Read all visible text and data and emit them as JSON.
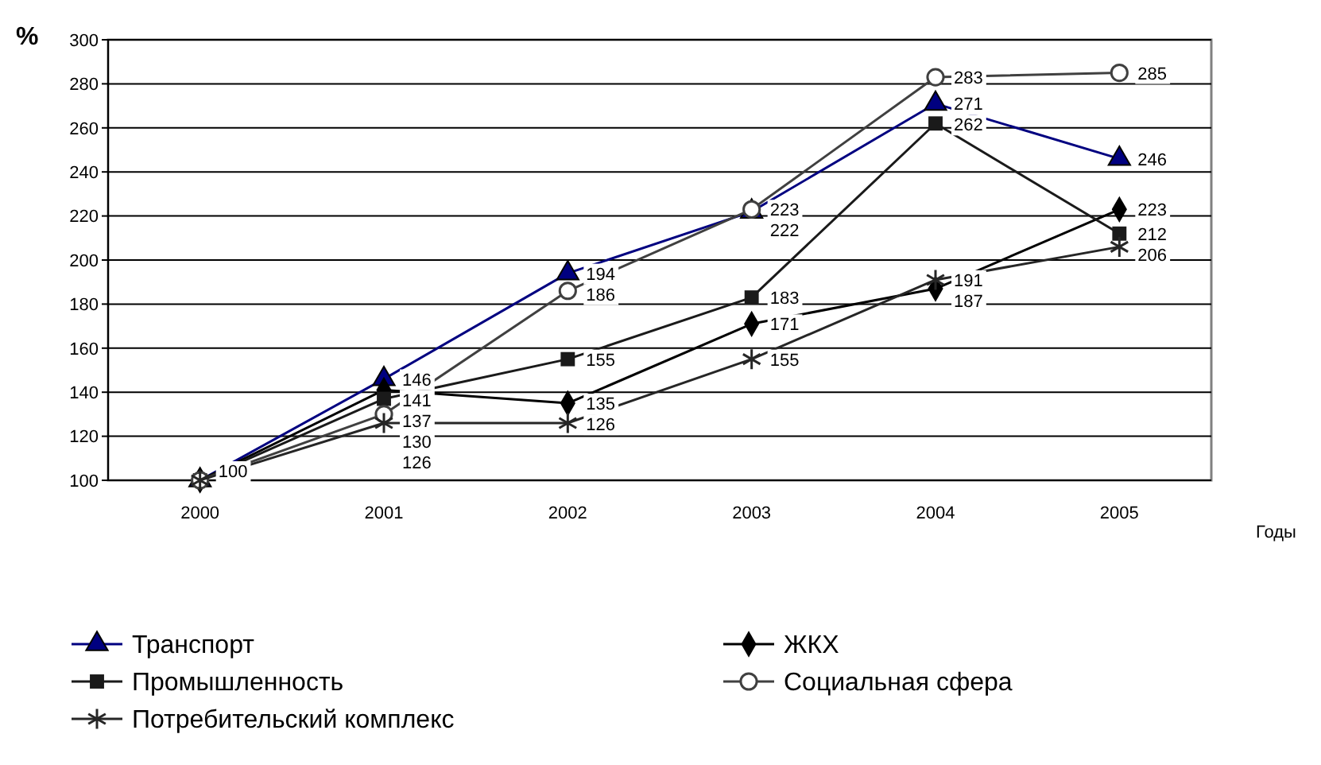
{
  "chart_data": {
    "type": "line",
    "xlabel": "Годы",
    "ylabel": "%",
    "categories": [
      "2000",
      "2001",
      "2002",
      "2003",
      "2004",
      "2005"
    ],
    "ylim": [
      100,
      300
    ],
    "yticks": [
      100,
      120,
      140,
      160,
      180,
      200,
      220,
      240,
      260,
      280,
      300
    ],
    "grid": "y",
    "legend": "bottom",
    "series": [
      {
        "name": "Транспорт",
        "color": "#000080",
        "marker": "triangle",
        "values": [
          100,
          146,
          194,
          222,
          271,
          246
        ],
        "value_labels": [
          null,
          "146",
          "194",
          "222",
          "271",
          "246"
        ]
      },
      {
        "name": "ЖКХ",
        "color": "#000000",
        "marker": "diamond",
        "values": [
          100,
          141,
          135,
          171,
          187,
          223
        ],
        "value_labels": [
          null,
          "141",
          "135",
          "171",
          "187",
          "223"
        ]
      },
      {
        "name": "Промышленность",
        "color": "#1a1a1a",
        "marker": "square",
        "values": [
          100,
          137,
          155,
          183,
          262,
          212
        ],
        "value_labels": [
          "100",
          "137",
          "155",
          "183",
          "262",
          "212"
        ]
      },
      {
        "name": "Социальная сфера",
        "color": "#404040",
        "marker": "circle",
        "values": [
          100,
          130,
          186,
          223,
          283,
          285
        ],
        "value_labels": [
          null,
          "130",
          "186",
          "223",
          "283",
          "285"
        ]
      },
      {
        "name": "Потребительский комплекс",
        "color": "#262626",
        "marker": "cross",
        "values": [
          100,
          126,
          126,
          155,
          191,
          206
        ],
        "value_labels": [
          null,
          "126",
          "126",
          "155",
          "191",
          "206"
        ]
      }
    ]
  }
}
